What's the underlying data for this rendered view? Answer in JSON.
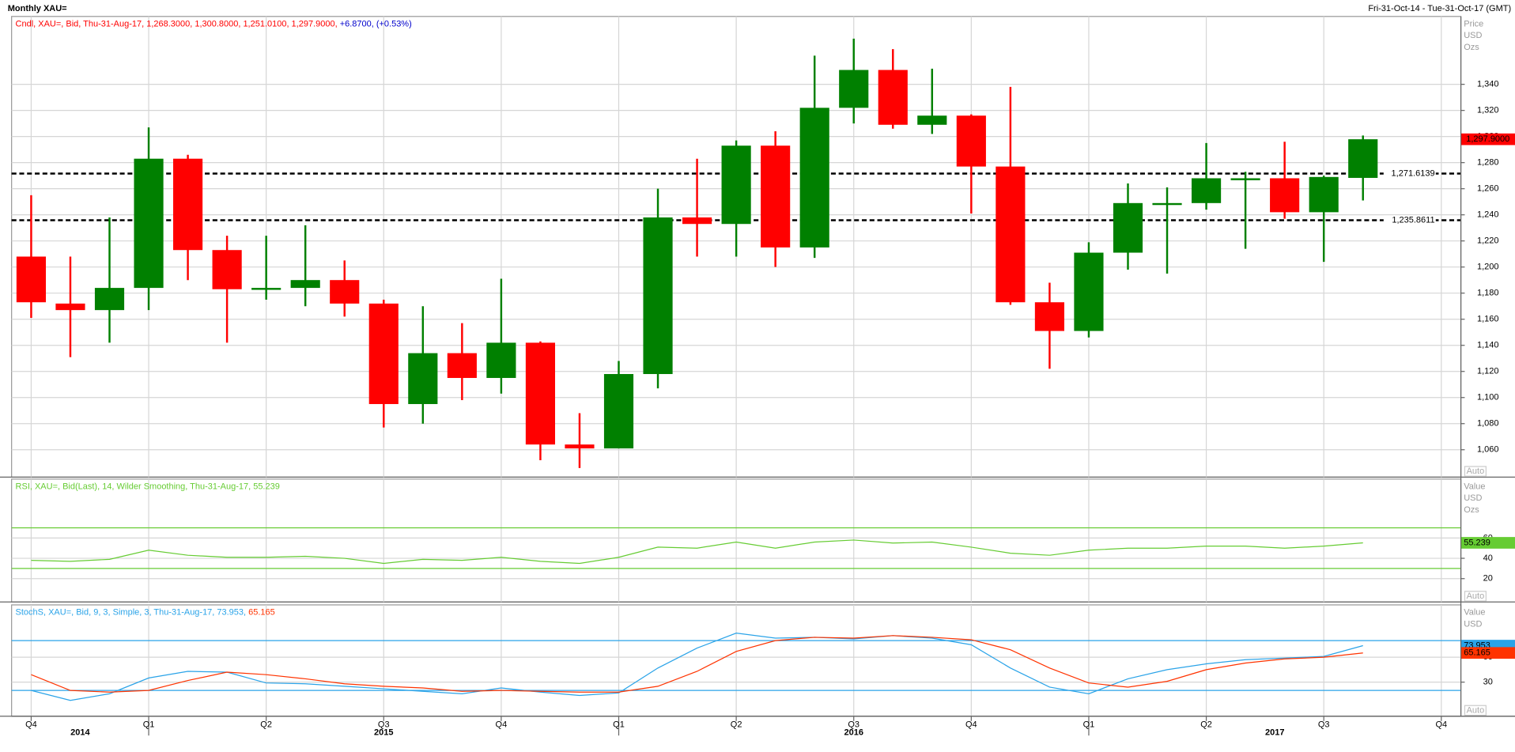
{
  "header": {
    "title": "Monthly XAU=",
    "range": "Fri-31-Oct-14 - Tue-31-Oct-17 (GMT)"
  },
  "x_axis": {
    "xlim": [
      -0.5,
      36.5
    ],
    "xticks": [
      {
        "value": 0,
        "label": "Q4"
      },
      {
        "value": 3,
        "label": "Q1"
      },
      {
        "value": 6,
        "label": "Q2"
      },
      {
        "value": 9,
        "label": "Q3"
      },
      {
        "value": 12,
        "label": "Q4"
      },
      {
        "value": 15,
        "label": "Q1"
      },
      {
        "value": 18,
        "label": "Q2"
      },
      {
        "value": 21,
        "label": "Q3"
      },
      {
        "value": 24,
        "label": "Q4"
      },
      {
        "value": 27,
        "label": "Q1"
      },
      {
        "value": 30,
        "label": "Q2"
      },
      {
        "value": 33,
        "label": "Q3"
      },
      {
        "value": 36,
        "label": "Q4"
      }
    ],
    "year_labels": [
      {
        "value": 1.25,
        "label": "2014"
      },
      {
        "value": 9,
        "label": "2015"
      },
      {
        "value": 21,
        "label": "2016"
      },
      {
        "value": 31.75,
        "label": "2017"
      }
    ]
  },
  "chart_data": [
    {
      "type": "candlestick",
      "legend": "Cndl, XAU=, Bid, Thu-31-Aug-17, 1,268.3000, 1,300.8000, 1,251.0100, 1,297.9000,",
      "change": "+6.8700, (+0.53%)",
      "axis_title": [
        "Price",
        "USD",
        "Ozs"
      ],
      "auto": "Auto",
      "open": [
        1208,
        1172,
        1167,
        1184,
        1283,
        1213,
        1183,
        1184,
        1190,
        1172,
        1095,
        1134,
        1115,
        1142,
        1064,
        1061,
        1118,
        1238,
        1233,
        1293,
        1215,
        1322,
        1351,
        1309,
        1316,
        1277,
        1173,
        1151,
        1211,
        1249,
        1249,
        1268,
        1268,
        1242,
        1268.3
      ],
      "high": [
        1255,
        1208,
        1238,
        1307,
        1286,
        1224,
        1224,
        1232,
        1205,
        1175,
        1170,
        1157,
        1191,
        1143,
        1088,
        1128,
        1260,
        1283,
        1297,
        1304,
        1362,
        1375,
        1367,
        1352,
        1317,
        1338,
        1188,
        1219,
        1264,
        1261,
        1295,
        1273,
        1296,
        1270,
        1300.8
      ],
      "low": [
        1161,
        1131,
        1142,
        1167,
        1190,
        1142,
        1175,
        1170,
        1162,
        1077,
        1080,
        1098,
        1103,
        1052,
        1046,
        1061,
        1107,
        1208,
        1208,
        1200,
        1207,
        1310,
        1306,
        1302,
        1241,
        1171,
        1122,
        1146,
        1198,
        1195,
        1244,
        1214,
        1237,
        1204,
        1251.01
      ],
      "close": [
        1173,
        1167,
        1184,
        1283,
        1213,
        1183,
        1184,
        1190,
        1172,
        1095,
        1134,
        1115,
        1142,
        1064,
        1061,
        1118,
        1238,
        1233,
        1293,
        1215,
        1322,
        1351,
        1309,
        1316,
        1277,
        1173,
        1151,
        1211,
        1249,
        1249,
        1268,
        1268,
        1242,
        1269,
        1297.9
      ],
      "close_label": "1,297.9000",
      "up_color": "#008000",
      "down_color": "#ff0000",
      "ylim": [
        1039,
        1392
      ],
      "yticks": [
        {
          "value": 1060,
          "label": "1,060"
        },
        {
          "value": 1080,
          "label": "1,080"
        },
        {
          "value": 1100,
          "label": "1,100"
        },
        {
          "value": 1120,
          "label": "1,120"
        },
        {
          "value": 1140,
          "label": "1,140"
        },
        {
          "value": 1160,
          "label": "1,160"
        },
        {
          "value": 1180,
          "label": "1,180"
        },
        {
          "value": 1200,
          "label": "1,200"
        },
        {
          "value": 1220,
          "label": "1,220"
        },
        {
          "value": 1240,
          "label": "1,240"
        },
        {
          "value": 1260,
          "label": "1,260"
        },
        {
          "value": 1280,
          "label": "1,280"
        },
        {
          "value": 1300,
          "label": "1,300"
        },
        {
          "value": 1320,
          "label": "1,320"
        },
        {
          "value": 1340,
          "label": "1,340"
        }
      ],
      "hlines": [
        {
          "value": 1271.6139,
          "label": "1,271.6139"
        },
        {
          "value": 1235.8611,
          "label": "1,235.8611"
        }
      ],
      "grid": true
    },
    {
      "type": "line",
      "axis_title": [
        "Value",
        "USD",
        "Ozs"
      ],
      "auto": "Auto",
      "series": [
        {
          "name": "RSI, XAU=, Bid(Last), 14, Wilder Smoothing, Thu-31-Aug-17, 55.239",
          "color": "#66cc33",
          "values": [
            38,
            37,
            39,
            48,
            43,
            41,
            41,
            42,
            40,
            35,
            39,
            38,
            41,
            37,
            35,
            41,
            51,
            50,
            56,
            50,
            56,
            58,
            55,
            56,
            51,
            45,
            43,
            48,
            50,
            50,
            52,
            52,
            50,
            52,
            55.239
          ]
        }
      ],
      "ref_lines": [
        30,
        70
      ],
      "ref_color": "#66cc33",
      "ylim": [
        -3,
        118
      ],
      "yticks": [
        20,
        40,
        60
      ],
      "grid": true
    },
    {
      "type": "line",
      "axis_title": [
        "Value",
        "USD"
      ],
      "auto": "Auto",
      "series": [
        {
          "name": "StochS, XAU=, Bid, 9, 3, Simple, 3, Thu-31-Aug-17, 73.953,",
          "color": "#2aa3e8",
          "values": [
            20,
            8,
            16,
            35,
            43,
            42,
            29,
            28,
            25,
            22,
            19,
            16,
            23,
            18,
            14,
            17,
            47,
            71,
            89,
            83,
            84,
            82,
            86,
            83,
            75,
            47,
            24,
            16,
            34,
            45,
            52,
            57,
            59,
            61,
            73.953
          ]
        },
        {
          "name": "65.165",
          "color": "#ff3300",
          "values": [
            39,
            20,
            18,
            20,
            32,
            42,
            39,
            34,
            28,
            25,
            23,
            19,
            20,
            19,
            18,
            18,
            25,
            43,
            67,
            80,
            84,
            83,
            86,
            84,
            81,
            69,
            47,
            29,
            24,
            31,
            45,
            53,
            58,
            60,
            65.165
          ]
        }
      ],
      "ref_lines": [
        20,
        80
      ],
      "ref_color": "#2aa3e8",
      "ylim": [
        -11,
        123
      ],
      "yticks": [
        30,
        60
      ],
      "grid": true
    }
  ]
}
